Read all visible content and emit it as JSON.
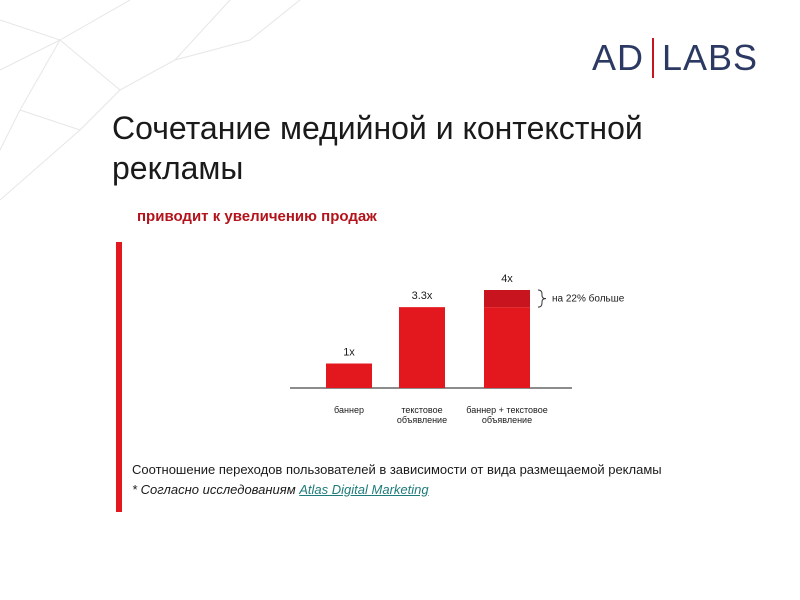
{
  "logo": {
    "left": "AD",
    "right": "LABS"
  },
  "title": "Сочетание медийной и контекстной рекламы",
  "subtitle": "приводит к увеличению продаж",
  "colors": {
    "accent": "#e3181f",
    "dark_red": "#c8141e",
    "axis": "#8c8c8c",
    "logo": "#2c3a63"
  },
  "chart_data": {
    "type": "bar",
    "categories": [
      "баннер",
      "текстовое объявление",
      "баннер + текстовое объявление"
    ],
    "values": [
      1,
      3.3,
      4
    ],
    "data_labels": [
      "1x",
      "3.3x",
      "4x"
    ],
    "highlight": {
      "base": 3.3,
      "extra": 0.7,
      "bracket_label": "на 22% больше"
    },
    "ylim": [
      0,
      4
    ],
    "title": "",
    "xlabel": "",
    "ylabel": ""
  },
  "caption": "Соотношение переходов пользователей в зависимости от вида размещаемой рекламы",
  "note": {
    "prefix": "* Согласно исследованиям ",
    "link": "Atlas Digital Marketing"
  }
}
